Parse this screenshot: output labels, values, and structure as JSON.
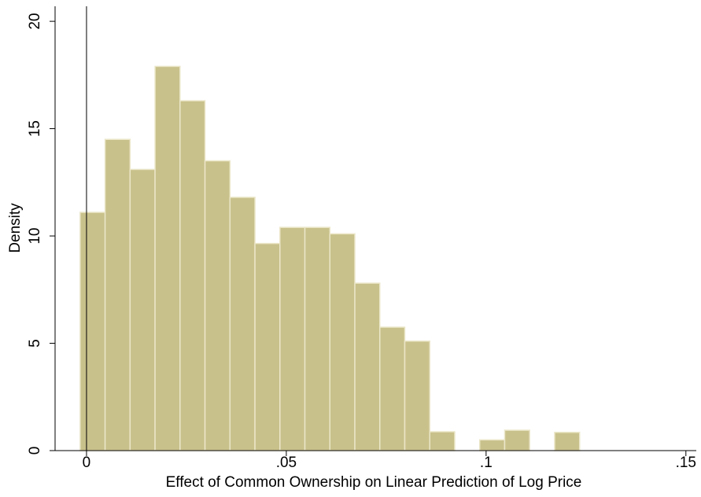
{
  "chart_data": {
    "type": "histogram",
    "x_label": "Effect of Common Ownership on Linear Prediction of Log Price",
    "y_label": "Density",
    "bins": [
      -0.0016,
      0.00465,
      0.0109,
      0.01715,
      0.0234,
      0.02965,
      0.0359,
      0.04215,
      0.0484,
      0.05465,
      0.0609,
      0.06715,
      0.0734,
      0.07965,
      0.0859,
      0.09215,
      0.0984,
      0.10465,
      0.1109,
      0.11715,
      0.1234
    ],
    "values": [
      11.1,
      14.5,
      13.1,
      17.9,
      16.3,
      13.5,
      11.8,
      9.65,
      10.4,
      10.4,
      10.1,
      7.8,
      5.75,
      5.1,
      0.88,
      0,
      0.5,
      0.95,
      0,
      0.85
    ],
    "color": "#c9c18b",
    "xlim": [
      -0.00787,
      0.1526
    ],
    "ylim": [
      0,
      20.7
    ],
    "xticks": [
      0,
      {
        "value": 0.05,
        "label": ".05"
      },
      {
        "value": 0.1,
        "label": ".1"
      },
      {
        "value": 0.15,
        "label": ".15"
      }
    ],
    "yticks": [
      0,
      5,
      10,
      15,
      20
    ],
    "xline": 0
  }
}
